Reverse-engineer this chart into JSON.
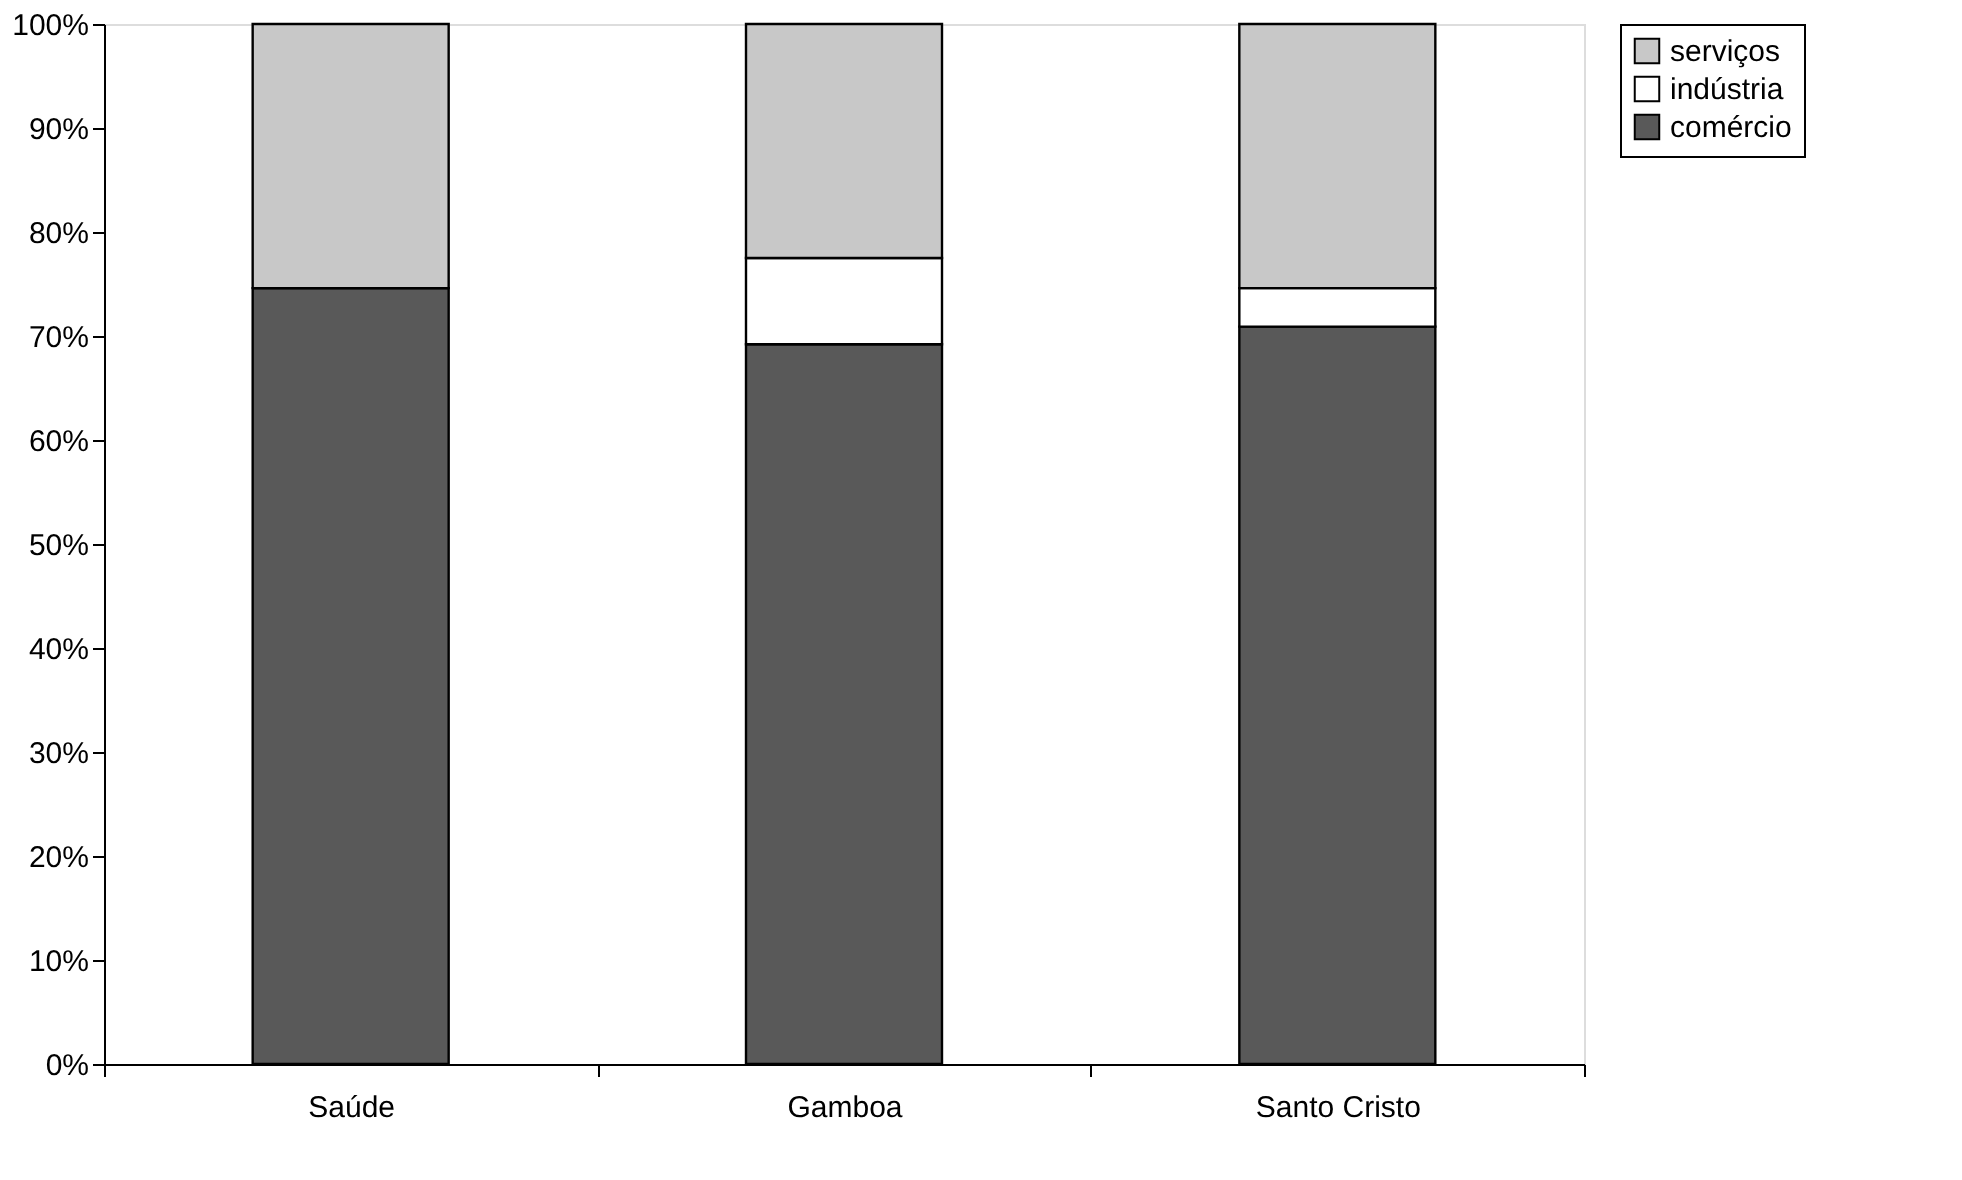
{
  "chart_data": {
    "type": "bar",
    "stacked": true,
    "categories": [
      "Saúde",
      "Gamboa",
      "Santo Cristo"
    ],
    "series": [
      {
        "name": "comércio",
        "color": "#595959",
        "values": [
          74.6,
          69.2,
          70.9
        ]
      },
      {
        "name": "indústria",
        "color": "#ffffff",
        "values": [
          0,
          8.3,
          3.7
        ]
      },
      {
        "name": "serviços",
        "color": "#c8c8c8",
        "values": [
          25.4,
          22.5,
          25.4
        ]
      }
    ],
    "ylim": [
      0,
      100
    ],
    "yticks": [
      {
        "value": 0,
        "label": "0%"
      },
      {
        "value": 10,
        "label": "10%"
      },
      {
        "value": 20,
        "label": "20%"
      },
      {
        "value": 30,
        "label": "30%"
      },
      {
        "value": 40,
        "label": "40%"
      },
      {
        "value": 50,
        "label": "50%"
      },
      {
        "value": 60,
        "label": "60%"
      },
      {
        "value": 70,
        "label": "70%"
      },
      {
        "value": 80,
        "label": "80%"
      },
      {
        "value": 90,
        "label": "90%"
      },
      {
        "value": 100,
        "label": "100%"
      }
    ],
    "grid": false,
    "legend": "right"
  }
}
